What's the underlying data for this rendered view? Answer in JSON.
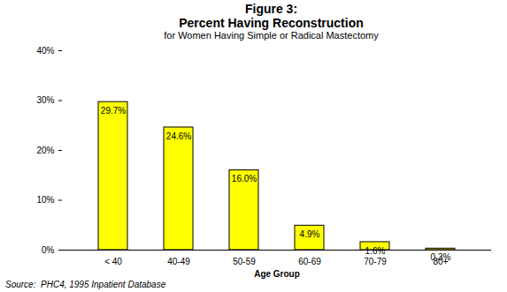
{
  "chart_data": {
    "type": "bar",
    "title": "Figure 3:\nPercent Having Reconstruction",
    "subtitle": "for Women Having Simple or Radical Mastectomy",
    "x_label": "Age Group",
    "caption": "Source:  PHC4, 1995 Inpatient Database",
    "categories": [
      "< 40",
      "40-49",
      "50-59",
      "60-69",
      "70-79",
      "80+"
    ],
    "values": [
      29.7,
      24.6,
      16.0,
      4.9,
      1.6,
      0.3
    ],
    "value_labels": [
      "29.7%",
      "24.6%",
      "16.0%",
      "4.9%",
      "1.6%",
      "0.3%"
    ],
    "data_labels": true,
    "color": "#ffff00",
    "ylim": [
      0,
      40
    ],
    "yticks": [
      {
        "value": 0,
        "label": "0%"
      },
      {
        "value": 10,
        "label": "10%"
      },
      {
        "value": 20,
        "label": "20%"
      },
      {
        "value": 30,
        "label": "30%"
      },
      {
        "value": 40,
        "label": "40%"
      }
    ],
    "grid": false
  }
}
